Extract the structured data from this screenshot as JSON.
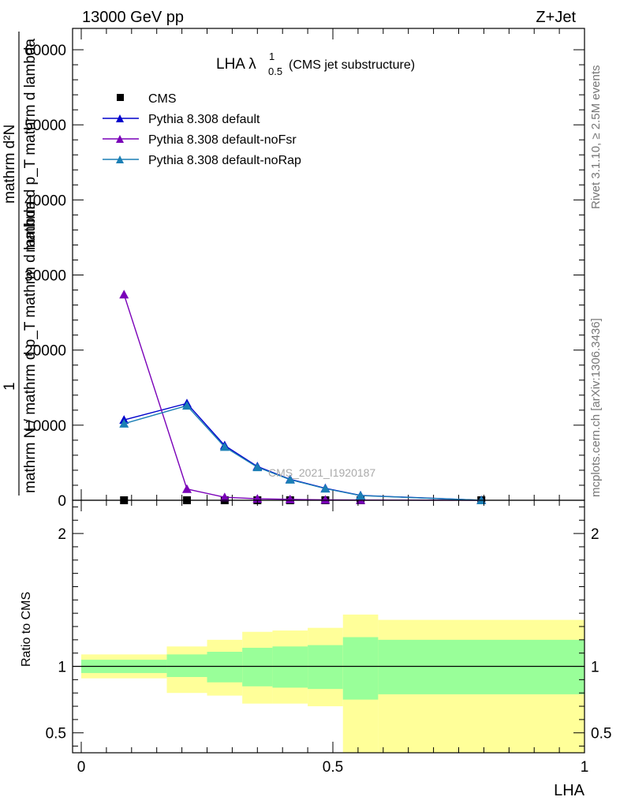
{
  "header": {
    "left": "13000 GeV pp",
    "right": "Z+Jet"
  },
  "side_labels": {
    "rivet": "Rivet 3.1.10, ≥ 2.5M events",
    "mcplots": "mcplots.cern.ch [arXiv:1306.3436]"
  },
  "watermark": "CMS_2021_I1920187",
  "chart_data": [
    {
      "type": "line",
      "title": {
        "main": "LHA λ",
        "sup": "1",
        "sub": "0.5",
        "suffix": "(CMS jet substructure)"
      },
      "ylabel": {
        "numerator": "mathrm d²N",
        "denominator": "mathrm d p_T mathrm d lambda",
        "prefix": "1",
        "line": "mathrm N / mathrm d p_T mathrm d lambda"
      },
      "xlim": [
        0,
        1
      ],
      "ylim": [
        0,
        62000
      ],
      "yticks": [
        0,
        10000,
        20000,
        30000,
        40000,
        50000,
        60000
      ],
      "ytick_labels": [
        "0",
        "10000",
        "20000",
        "30000",
        "40000",
        "50000",
        "60000"
      ],
      "legend_position": "top-left",
      "series": [
        {
          "name": "CMS",
          "color": "#000000",
          "marker": "square",
          "x": [
            0.085,
            0.21,
            0.285,
            0.35,
            0.415,
            0.485,
            0.555,
            0.795
          ],
          "y": [
            0,
            0,
            0,
            0,
            0,
            0,
            0,
            0
          ]
        },
        {
          "name": "Pythia 8.308 default",
          "color": "#0000cc",
          "marker": "triangle",
          "x": [
            0.085,
            0.21,
            0.285,
            0.35,
            0.415,
            0.485,
            0.555,
            0.795
          ],
          "y": [
            10700,
            12900,
            7300,
            4500,
            2800,
            1600,
            650,
            0
          ]
        },
        {
          "name": "Pythia 8.308 default-noFsr",
          "color": "#7a00b8",
          "marker": "triangle",
          "x": [
            0.085,
            0.21,
            0.285,
            0.35,
            0.415,
            0.485,
            0.555,
            0.795
          ],
          "y": [
            27400,
            1500,
            400,
            200,
            120,
            60,
            30,
            0
          ]
        },
        {
          "name": "Pythia 8.308 default-noRap",
          "color": "#1b7fb5",
          "marker": "triangle",
          "x": [
            0.085,
            0.21,
            0.285,
            0.35,
            0.415,
            0.485,
            0.555,
            0.795
          ],
          "y": [
            10200,
            12600,
            7100,
            4400,
            2750,
            1550,
            620,
            0
          ]
        }
      ]
    },
    {
      "type": "area",
      "ylabel": "Ratio to CMS",
      "xlabel": "LHA",
      "xlim": [
        0,
        1
      ],
      "ylim": [
        0.35,
        2.25
      ],
      "yticks": [
        0.5,
        1,
        2
      ],
      "ytick_labels": [
        "0.5",
        "1",
        "2"
      ],
      "xticks": [
        0,
        0.5,
        1
      ],
      "xtick_labels": [
        "0",
        "0.5",
        "1"
      ],
      "reference_line": 1,
      "bins": [
        {
          "x0": 0.0,
          "x1": 0.17,
          "outer": [
            0.91,
            1.09
          ],
          "inner": [
            0.95,
            1.05
          ]
        },
        {
          "x0": 0.17,
          "x1": 0.25,
          "outer": [
            0.8,
            1.15
          ],
          "inner": [
            0.92,
            1.09
          ]
        },
        {
          "x0": 0.25,
          "x1": 0.32,
          "outer": [
            0.78,
            1.2
          ],
          "inner": [
            0.88,
            1.11
          ]
        },
        {
          "x0": 0.32,
          "x1": 0.38,
          "outer": [
            0.72,
            1.26
          ],
          "inner": [
            0.85,
            1.14
          ]
        },
        {
          "x0": 0.38,
          "x1": 0.45,
          "outer": [
            0.72,
            1.27
          ],
          "inner": [
            0.84,
            1.15
          ]
        },
        {
          "x0": 0.45,
          "x1": 0.52,
          "outer": [
            0.7,
            1.29
          ],
          "inner": [
            0.83,
            1.16
          ]
        },
        {
          "x0": 0.52,
          "x1": 0.59,
          "outer": [
            0.35,
            1.39
          ],
          "inner": [
            0.75,
            1.22
          ]
        },
        {
          "x0": 0.59,
          "x1": 1.0,
          "outer": [
            0.35,
            1.35
          ],
          "inner": [
            0.79,
            1.2
          ]
        }
      ],
      "colors": {
        "outer": "#ffff99",
        "inner": "#99ff99"
      }
    }
  ]
}
